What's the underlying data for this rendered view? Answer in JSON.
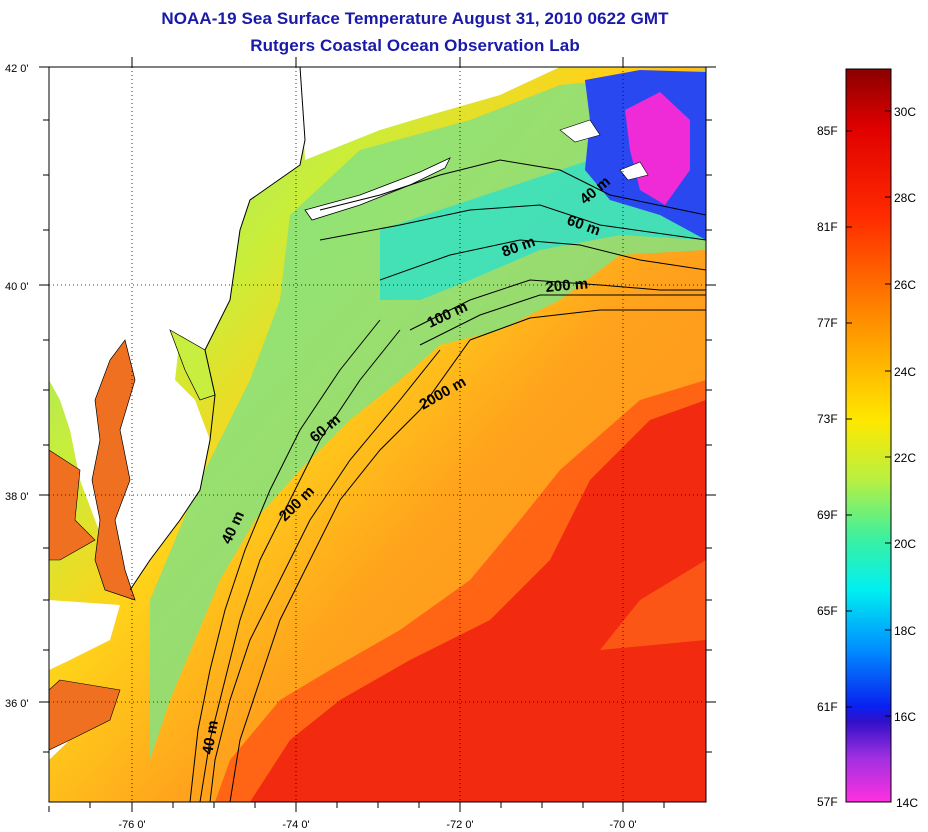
{
  "title": {
    "line1": "NOAA-19 Sea Surface Temperature August 31, 2010 0622 GMT",
    "line2": "Rutgers Coastal Ocean Observation Lab"
  },
  "axes": {
    "lon_ticks": [
      "-76 0'",
      "-74 0'",
      "-72 0'",
      "-70 0'"
    ],
    "lat_ticks": [
      "42 0'",
      "40 0'",
      "38 0'",
      "36 0'"
    ]
  },
  "isobaths": [
    "40 m",
    "60 m",
    "80 m",
    "200 m",
    "100 m",
    "2000 m",
    "60 m",
    "200 m",
    "40 m",
    "40 m"
  ],
  "colorbar": {
    "fahrenheit": [
      "85F",
      "81F",
      "77F",
      "73F",
      "69F",
      "65F",
      "61F",
      "57F"
    ],
    "celsius": [
      "30C",
      "28C",
      "26C",
      "24C",
      "22C",
      "20C",
      "18C",
      "16C",
      "14C"
    ]
  },
  "colors": {
    "title": "#1a1aa8",
    "land": "#ffffff",
    "warm_core": "#f02a10",
    "shelf_green": "#6be07a",
    "cold_blue": "#2244ee",
    "cold_magenta": "#ee2bd6"
  }
}
